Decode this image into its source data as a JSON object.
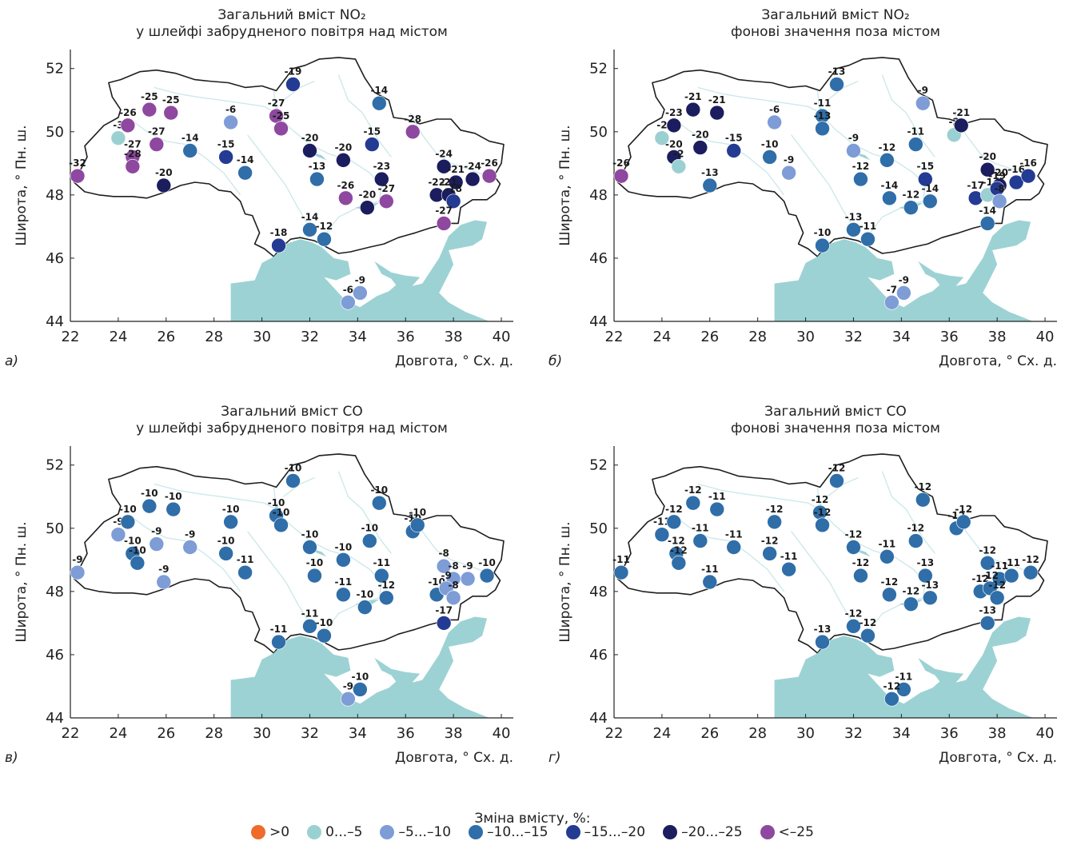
{
  "legend": {
    "title": "Зміна вмісту, %:",
    "items": [
      {
        "label": ">0",
        "color": "#ef6b2b"
      },
      {
        "label": "0...–5",
        "color": "#9bd0d2"
      },
      {
        "label": "–5...–10",
        "color": "#7e9cd6"
      },
      {
        "label": "–10...–15",
        "color": "#2f6ea8"
      },
      {
        "label": "–15...–20",
        "color": "#243b93"
      },
      {
        "label": "–20...–25",
        "color": "#1b1d5e"
      },
      {
        "label": "<–25",
        "color": "#8e48a0"
      }
    ]
  },
  "chart_data": [
    {
      "type": "scatter",
      "panel_label": "а)",
      "title": [
        "Загальний вміст NO₂",
        "у шлейфі забрудненого повітря над містом"
      ],
      "xlabel": "Довгота, ° Сх. д.",
      "ylabel": "Широта, ° Пн. ш.",
      "xlim": [
        22,
        40.5
      ],
      "ylim": [
        44,
        52.6
      ],
      "xticks": [
        22,
        24,
        26,
        28,
        30,
        32,
        34,
        36,
        38,
        40
      ],
      "yticks": [
        44,
        46,
        48,
        50,
        52
      ],
      "points": [
        {
          "x": 22.3,
          "y": 48.6,
          "value": -32
        },
        {
          "x": 24.0,
          "y": 49.8,
          "value": -3
        },
        {
          "x": 24.4,
          "y": 50.2,
          "value": -26
        },
        {
          "x": 24.6,
          "y": 49.2,
          "value": -27
        },
        {
          "x": 24.6,
          "y": 48.9,
          "value": -28
        },
        {
          "x": 25.3,
          "y": 50.7,
          "value": -25
        },
        {
          "x": 25.6,
          "y": 49.6,
          "value": -27
        },
        {
          "x": 26.2,
          "y": 50.6,
          "value": -25
        },
        {
          "x": 25.9,
          "y": 48.3,
          "value": -20
        },
        {
          "x": 27.0,
          "y": 49.4,
          "value": -14
        },
        {
          "x": 28.7,
          "y": 50.3,
          "value": -6
        },
        {
          "x": 28.5,
          "y": 49.2,
          "value": -15
        },
        {
          "x": 29.3,
          "y": 48.7,
          "value": -14
        },
        {
          "x": 30.6,
          "y": 50.5,
          "value": -27
        },
        {
          "x": 30.8,
          "y": 50.1,
          "value": -25
        },
        {
          "x": 31.3,
          "y": 51.5,
          "value": -19
        },
        {
          "x": 32.0,
          "y": 49.4,
          "value": -20
        },
        {
          "x": 32.3,
          "y": 48.5,
          "value": -13
        },
        {
          "x": 33.4,
          "y": 49.1,
          "value": -20
        },
        {
          "x": 34.6,
          "y": 49.6,
          "value": -15
        },
        {
          "x": 34.9,
          "y": 50.9,
          "value": -14
        },
        {
          "x": 35.0,
          "y": 48.5,
          "value": -23
        },
        {
          "x": 33.5,
          "y": 47.9,
          "value": -26
        },
        {
          "x": 34.4,
          "y": 47.6,
          "value": -20
        },
        {
          "x": 35.2,
          "y": 47.8,
          "value": -27
        },
        {
          "x": 36.3,
          "y": 50.0,
          "value": -28
        },
        {
          "x": 37.6,
          "y": 48.9,
          "value": -24
        },
        {
          "x": 38.1,
          "y": 48.4,
          "value": -21
        },
        {
          "x": 38.8,
          "y": 48.5,
          "value": -24
        },
        {
          "x": 39.5,
          "y": 48.6,
          "value": -26
        },
        {
          "x": 37.3,
          "y": 48.0,
          "value": -22
        },
        {
          "x": 37.8,
          "y": 48.0,
          "value": -21
        },
        {
          "x": 38.0,
          "y": 47.8,
          "value": -18
        },
        {
          "x": 37.6,
          "y": 47.1,
          "value": -27
        },
        {
          "x": 32.0,
          "y": 46.9,
          "value": -14
        },
        {
          "x": 32.6,
          "y": 46.6,
          "value": -12
        },
        {
          "x": 30.7,
          "y": 46.4,
          "value": -18
        },
        {
          "x": 34.1,
          "y": 44.9,
          "value": -9
        },
        {
          "x": 33.6,
          "y": 44.6,
          "value": -6
        }
      ]
    },
    {
      "type": "scatter",
      "panel_label": "б)",
      "title": [
        "Загальний вміст NO₂",
        "фонові значення поза містом"
      ],
      "xlabel": "Довгота, ° Сх. д.",
      "ylabel": "Широта, ° Пн. ш.",
      "xlim": [
        22,
        40.5
      ],
      "ylim": [
        44,
        52.6
      ],
      "xticks": [
        22,
        24,
        26,
        28,
        30,
        32,
        34,
        36,
        38,
        40
      ],
      "yticks": [
        44,
        46,
        48,
        50,
        52
      ],
      "points": [
        {
          "x": 22.3,
          "y": 48.6,
          "value": -26
        },
        {
          "x": 24.0,
          "y": 49.8,
          "value": -2
        },
        {
          "x": 24.5,
          "y": 50.2,
          "value": -23
        },
        {
          "x": 24.5,
          "y": 49.2,
          "value": -20
        },
        {
          "x": 24.7,
          "y": 48.9,
          "value": -2
        },
        {
          "x": 25.3,
          "y": 50.7,
          "value": -21
        },
        {
          "x": 25.6,
          "y": 49.5,
          "value": -20
        },
        {
          "x": 26.3,
          "y": 50.6,
          "value": -21
        },
        {
          "x": 26.0,
          "y": 48.3,
          "value": -13
        },
        {
          "x": 27.0,
          "y": 49.4,
          "value": -15
        },
        {
          "x": 28.7,
          "y": 50.3,
          "value": -6
        },
        {
          "x": 28.5,
          "y": 49.2,
          "value": -10
        },
        {
          "x": 29.3,
          "y": 48.7,
          "value": -9
        },
        {
          "x": 30.7,
          "y": 50.5,
          "value": -11
        },
        {
          "x": 30.7,
          "y": 50.1,
          "value": -13
        },
        {
          "x": 31.3,
          "y": 51.5,
          "value": -13
        },
        {
          "x": 32.0,
          "y": 49.4,
          "value": -9
        },
        {
          "x": 32.3,
          "y": 48.5,
          "value": -12
        },
        {
          "x": 33.4,
          "y": 49.1,
          "value": -12
        },
        {
          "x": 34.6,
          "y": 49.6,
          "value": -11
        },
        {
          "x": 34.9,
          "y": 50.9,
          "value": -9
        },
        {
          "x": 35.0,
          "y": 48.5,
          "value": -15
        },
        {
          "x": 33.5,
          "y": 47.9,
          "value": -14
        },
        {
          "x": 34.4,
          "y": 47.6,
          "value": -12
        },
        {
          "x": 35.2,
          "y": 47.8,
          "value": -14
        },
        {
          "x": 36.2,
          "y": 49.9,
          "value": -2
        },
        {
          "x": 36.5,
          "y": 50.2,
          "value": -21
        },
        {
          "x": 37.6,
          "y": 48.8,
          "value": -20
        },
        {
          "x": 38.1,
          "y": 48.3,
          "value": -20
        },
        {
          "x": 38.8,
          "y": 48.4,
          "value": -16
        },
        {
          "x": 39.3,
          "y": 48.6,
          "value": -16
        },
        {
          "x": 37.1,
          "y": 47.9,
          "value": -17
        },
        {
          "x": 37.6,
          "y": 48.0,
          "value": -1
        },
        {
          "x": 38.0,
          "y": 48.2,
          "value": -19
        },
        {
          "x": 38.1,
          "y": 47.8,
          "value": -8
        },
        {
          "x": 37.6,
          "y": 47.1,
          "value": -14
        },
        {
          "x": 32.0,
          "y": 46.9,
          "value": -13
        },
        {
          "x": 32.6,
          "y": 46.6,
          "value": -11
        },
        {
          "x": 30.7,
          "y": 46.4,
          "value": -10
        },
        {
          "x": 34.1,
          "y": 44.9,
          "value": -9
        },
        {
          "x": 33.6,
          "y": 44.6,
          "value": -7
        }
      ]
    },
    {
      "type": "scatter",
      "panel_label": "в)",
      "title": [
        "Загальний вміст CO",
        "у шлейфі забрудненого повітря над містом"
      ],
      "xlabel": "Довгота, ° Сх. д.",
      "ylabel": "Широта, ° Пн. ш.",
      "xlim": [
        22,
        40.5
      ],
      "ylim": [
        44,
        52.6
      ],
      "xticks": [
        22,
        24,
        26,
        28,
        30,
        32,
        34,
        36,
        38,
        40
      ],
      "yticks": [
        44,
        46,
        48,
        50,
        52
      ],
      "points": [
        {
          "x": 22.3,
          "y": 48.6,
          "value": -9
        },
        {
          "x": 24.0,
          "y": 49.8,
          "value": -9
        },
        {
          "x": 24.4,
          "y": 50.2,
          "value": -10
        },
        {
          "x": 24.6,
          "y": 49.2,
          "value": -10
        },
        {
          "x": 24.8,
          "y": 48.9,
          "value": -10
        },
        {
          "x": 25.3,
          "y": 50.7,
          "value": -10
        },
        {
          "x": 25.6,
          "y": 49.5,
          "value": -9
        },
        {
          "x": 26.3,
          "y": 50.6,
          "value": -10
        },
        {
          "x": 25.9,
          "y": 48.3,
          "value": -9
        },
        {
          "x": 27.0,
          "y": 49.4,
          "value": -9
        },
        {
          "x": 28.7,
          "y": 50.2,
          "value": -10
        },
        {
          "x": 28.5,
          "y": 49.2,
          "value": -10
        },
        {
          "x": 29.3,
          "y": 48.6,
          "value": -11
        },
        {
          "x": 30.6,
          "y": 50.4,
          "value": -10
        },
        {
          "x": 30.8,
          "y": 50.1,
          "value": -10
        },
        {
          "x": 31.3,
          "y": 51.5,
          "value": -10
        },
        {
          "x": 32.0,
          "y": 49.4,
          "value": -10
        },
        {
          "x": 32.2,
          "y": 48.5,
          "value": -10
        },
        {
          "x": 33.4,
          "y": 49.0,
          "value": -10
        },
        {
          "x": 34.5,
          "y": 49.6,
          "value": -10
        },
        {
          "x": 34.9,
          "y": 50.8,
          "value": -10
        },
        {
          "x": 35.0,
          "y": 48.5,
          "value": -11
        },
        {
          "x": 33.4,
          "y": 47.9,
          "value": -11
        },
        {
          "x": 34.3,
          "y": 47.5,
          "value": -10
        },
        {
          "x": 35.2,
          "y": 47.8,
          "value": -12
        },
        {
          "x": 36.3,
          "y": 49.9,
          "value": -10
        },
        {
          "x": 36.5,
          "y": 50.1,
          "value": -10
        },
        {
          "x": 37.6,
          "y": 48.8,
          "value": -8
        },
        {
          "x": 38.0,
          "y": 48.4,
          "value": -8
        },
        {
          "x": 38.6,
          "y": 48.4,
          "value": -9
        },
        {
          "x": 39.4,
          "y": 48.5,
          "value": -10
        },
        {
          "x": 37.3,
          "y": 47.9,
          "value": -10
        },
        {
          "x": 37.7,
          "y": 48.1,
          "value": -9
        },
        {
          "x": 38.0,
          "y": 47.8,
          "value": -8
        },
        {
          "x": 37.6,
          "y": 47.0,
          "value": -17
        },
        {
          "x": 32.0,
          "y": 46.9,
          "value": -11
        },
        {
          "x": 32.6,
          "y": 46.6,
          "value": -10
        },
        {
          "x": 30.7,
          "y": 46.4,
          "value": -11
        },
        {
          "x": 34.1,
          "y": 44.9,
          "value": -10
        },
        {
          "x": 33.6,
          "y": 44.6,
          "value": -9
        }
      ]
    },
    {
      "type": "scatter",
      "panel_label": "г)",
      "title": [
        "Загальний вміст CO",
        "фонові значення поза містом"
      ],
      "xlabel": "Довгота, ° Сх. д.",
      "ylabel": "Широта, ° Пн. ш.",
      "xlim": [
        22,
        40.5
      ],
      "ylim": [
        44,
        52.6
      ],
      "xticks": [
        22,
        24,
        26,
        28,
        30,
        32,
        34,
        36,
        38,
        40
      ],
      "yticks": [
        44,
        46,
        48,
        50,
        52
      ],
      "points": [
        {
          "x": 22.3,
          "y": 48.6,
          "value": -11
        },
        {
          "x": 24.0,
          "y": 49.8,
          "value": -11
        },
        {
          "x": 24.5,
          "y": 50.2,
          "value": -12
        },
        {
          "x": 24.6,
          "y": 49.2,
          "value": -12
        },
        {
          "x": 24.7,
          "y": 48.9,
          "value": -12
        },
        {
          "x": 25.3,
          "y": 50.8,
          "value": -12
        },
        {
          "x": 25.6,
          "y": 49.6,
          "value": -11
        },
        {
          "x": 26.3,
          "y": 50.6,
          "value": -11
        },
        {
          "x": 26.0,
          "y": 48.3,
          "value": -11
        },
        {
          "x": 27.0,
          "y": 49.4,
          "value": -11
        },
        {
          "x": 28.7,
          "y": 50.2,
          "value": -12
        },
        {
          "x": 28.5,
          "y": 49.2,
          "value": -12
        },
        {
          "x": 29.3,
          "y": 48.7,
          "value": -11
        },
        {
          "x": 30.6,
          "y": 50.5,
          "value": -12
        },
        {
          "x": 30.7,
          "y": 50.1,
          "value": -12
        },
        {
          "x": 31.3,
          "y": 51.5,
          "value": -12
        },
        {
          "x": 32.0,
          "y": 49.4,
          "value": -12
        },
        {
          "x": 32.3,
          "y": 48.5,
          "value": -12
        },
        {
          "x": 33.4,
          "y": 49.1,
          "value": -11
        },
        {
          "x": 34.6,
          "y": 49.6,
          "value": -12
        },
        {
          "x": 34.9,
          "y": 50.9,
          "value": -12
        },
        {
          "x": 35.0,
          "y": 48.5,
          "value": -13
        },
        {
          "x": 33.5,
          "y": 47.9,
          "value": -12
        },
        {
          "x": 34.4,
          "y": 47.6,
          "value": -12
        },
        {
          "x": 35.2,
          "y": 47.8,
          "value": -13
        },
        {
          "x": 36.3,
          "y": 50.0,
          "value": -12
        },
        {
          "x": 36.6,
          "y": 50.2,
          "value": -12
        },
        {
          "x": 37.6,
          "y": 48.9,
          "value": -12
        },
        {
          "x": 38.1,
          "y": 48.4,
          "value": -11
        },
        {
          "x": 38.6,
          "y": 48.5,
          "value": -11
        },
        {
          "x": 39.4,
          "y": 48.6,
          "value": -12
        },
        {
          "x": 37.3,
          "y": 48.0,
          "value": -12
        },
        {
          "x": 37.7,
          "y": 48.1,
          "value": -12
        },
        {
          "x": 38.0,
          "y": 47.8,
          "value": -12
        },
        {
          "x": 37.6,
          "y": 47.0,
          "value": -13
        },
        {
          "x": 32.0,
          "y": 46.9,
          "value": -12
        },
        {
          "x": 32.6,
          "y": 46.6,
          "value": -12
        },
        {
          "x": 30.7,
          "y": 46.4,
          "value": -13
        },
        {
          "x": 34.1,
          "y": 44.9,
          "value": -11
        },
        {
          "x": 33.6,
          "y": 44.6,
          "value": -12
        }
      ]
    }
  ]
}
